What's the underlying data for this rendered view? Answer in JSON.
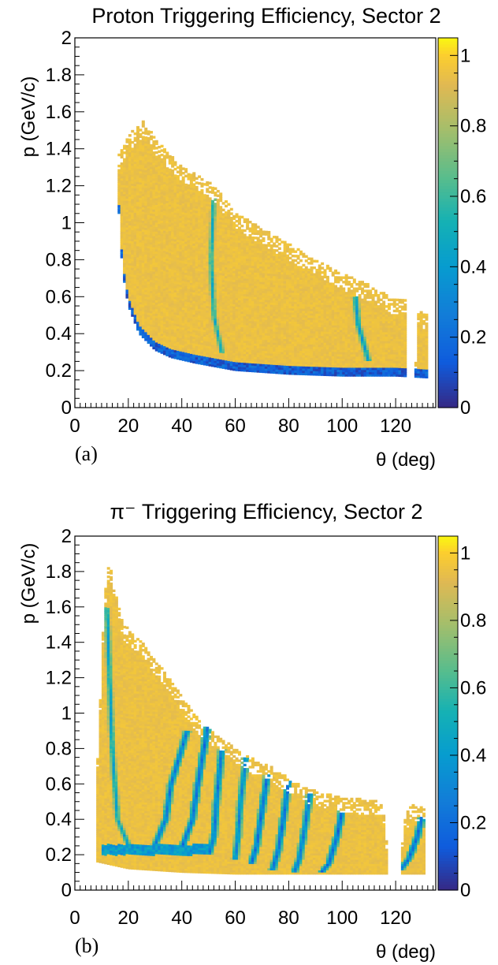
{
  "chart_data": [
    {
      "type": "heatmap",
      "title": "Proton Triggering Efficiency, Sector 2",
      "xlabel": "θ (deg)",
      "ylabel": "p (GeV/c)",
      "panel_label": "(a)",
      "xlim": [
        0,
        135
      ],
      "ylim": [
        0,
        2
      ],
      "zlim": [
        0,
        1.05
      ],
      "x_ticks": [
        0,
        20,
        40,
        60,
        80,
        100,
        120
      ],
      "y_ticks": [
        0,
        0.2,
        0.4,
        0.6,
        0.8,
        1,
        1.2,
        1.4,
        1.6,
        1.8,
        2
      ],
      "y_tick_labels": [
        "0",
        "0.2",
        "0.4",
        "0.6",
        "0.8",
        "1",
        "1.2",
        "1.4",
        "1.6",
        "1.8",
        "2"
      ],
      "colorbar_ticks": [
        0,
        0.2,
        0.4,
        0.6,
        0.8,
        1
      ],
      "colorbar_tick_labels": [
        "0",
        "0.2",
        "0.4",
        "0.6",
        "0.8",
        "1"
      ],
      "colormap": "viridis-like (dark blue → teal → yellow)",
      "bins": {
        "dtheta": 1,
        "dp": 0.012
      },
      "region": {
        "theta_range": [
          16,
          132
        ],
        "p_min_edge": [
          [
            16,
            1.2
          ],
          [
            17,
            0.9
          ],
          [
            18,
            0.72
          ],
          [
            20,
            0.55
          ],
          [
            24,
            0.4
          ],
          [
            30,
            0.31
          ],
          [
            36,
            0.27
          ],
          [
            45,
            0.24
          ],
          [
            60,
            0.2
          ],
          [
            80,
            0.18
          ],
          [
            100,
            0.17
          ],
          [
            120,
            0.17
          ],
          [
            132,
            0.16
          ]
        ],
        "p_max_edge": [
          [
            16,
            1.35
          ],
          [
            19,
            1.45
          ],
          [
            22,
            1.5
          ],
          [
            26,
            1.55
          ],
          [
            30,
            1.45
          ],
          [
            40,
            1.3
          ],
          [
            50,
            1.22
          ],
          [
            52,
            1.2
          ],
          [
            60,
            1.05
          ],
          [
            80,
            0.88
          ],
          [
            100,
            0.72
          ],
          [
            110,
            0.66
          ],
          [
            120,
            0.58
          ],
          [
            124,
            0.58
          ],
          [
            125,
            0.0
          ],
          [
            127,
            0.0
          ],
          [
            128,
            0.52
          ],
          [
            132,
            0.5
          ]
        ],
        "gaps": [
          [
            123.5,
            126.5
          ]
        ],
        "low_efficiency_bands": [
          {
            "name": "low-p edge",
            "description": "dark blue band along the lower boundary",
            "value": 0.05
          },
          {
            "name": "arc near 50 deg",
            "theta_at_p": [
              [
                52,
                1.15
              ],
              [
                51,
                0.8
              ],
              [
                52,
                0.5
              ],
              [
                55,
                0.3
              ]
            ],
            "value": 0.4
          },
          {
            "name": "arc near 108 deg",
            "theta_at_p": [
              [
                105,
                0.6
              ],
              [
                106,
                0.45
              ],
              [
                108,
                0.35
              ],
              [
                110,
                0.25
              ]
            ],
            "value": 0.3
          }
        ],
        "typical_efficiency": 0.97
      }
    },
    {
      "type": "heatmap",
      "title": "π⁻ Triggering Efficiency, Sector 2",
      "xlabel": "θ (deg)",
      "ylabel": "p (GeV/c)",
      "panel_label": "(b)",
      "xlim": [
        0,
        135
      ],
      "ylim": [
        0,
        2
      ],
      "zlim": [
        0,
        1.05
      ],
      "x_ticks": [
        0,
        20,
        40,
        60,
        80,
        100,
        120
      ],
      "y_ticks": [
        0,
        0.2,
        0.4,
        0.6,
        0.8,
        1,
        1.2,
        1.4,
        1.6,
        1.8,
        2
      ],
      "y_tick_labels": [
        "0",
        "0.2",
        "0.4",
        "0.6",
        "0.8",
        "1",
        "1.2",
        "1.4",
        "1.6",
        "1.8",
        "2"
      ],
      "colorbar_ticks": [
        0,
        0.2,
        0.4,
        0.6,
        0.8,
        1
      ],
      "colorbar_tick_labels": [
        "0",
        "0.2",
        "0.4",
        "0.6",
        "0.8",
        "1"
      ],
      "colormap": "viridis-like (dark blue → teal → yellow)",
      "bins": {
        "dtheta": 1,
        "dp": 0.012
      },
      "region": {
        "theta_range": [
          8,
          131
        ],
        "p_min_edge": [
          [
            8,
            0.16
          ],
          [
            20,
            0.12
          ],
          [
            40,
            0.1
          ],
          [
            60,
            0.09
          ],
          [
            100,
            0.09
          ],
          [
            131,
            0.09
          ]
        ],
        "p_max_edge": [
          [
            8,
            0.68
          ],
          [
            9,
            0.85
          ],
          [
            10,
            1.3
          ],
          [
            11,
            1.6
          ],
          [
            12,
            1.8
          ],
          [
            13,
            1.85
          ],
          [
            14,
            1.75
          ],
          [
            18,
            1.5
          ],
          [
            25,
            1.4
          ],
          [
            35,
            1.2
          ],
          [
            45,
            0.98
          ],
          [
            55,
            0.85
          ],
          [
            65,
            0.75
          ],
          [
            75,
            0.68
          ],
          [
            85,
            0.58
          ],
          [
            100,
            0.52
          ],
          [
            115,
            0.5
          ],
          [
            116,
            0.4
          ],
          [
            118,
            0.0
          ],
          [
            121,
            0.0
          ],
          [
            123,
            0.4
          ],
          [
            126,
            0.48
          ],
          [
            131,
            0.46
          ]
        ],
        "gaps": [
          [
            116.5,
            121.5
          ]
        ],
        "low_efficiency_bands": [
          {
            "name": "band 1",
            "theta_at_p": [
              [
                12,
                1.6
              ],
              [
                13,
                1.2
              ],
              [
                14,
                0.8
              ],
              [
                16,
                0.4
              ],
              [
                20,
                0.26
              ]
            ],
            "value": 0.35
          },
          {
            "name": "band 2",
            "theta_at_p": [
              [
                42,
                0.9
              ],
              [
                36,
                0.6
              ],
              [
                34,
                0.4
              ],
              [
                30,
                0.26
              ]
            ],
            "value": 0.15
          },
          {
            "name": "band 3",
            "theta_at_p": [
              [
                50,
                0.95
              ],
              [
                46,
                0.6
              ],
              [
                44,
                0.4
              ],
              [
                40,
                0.24
              ]
            ],
            "value": 0.12
          },
          {
            "name": "band 4",
            "theta_at_p": [
              [
                55,
                0.8
              ],
              [
                53,
                0.5
              ],
              [
                52,
                0.3
              ],
              [
                50,
                0.2
              ]
            ],
            "value": 0.15
          },
          {
            "name": "band 5",
            "theta_at_p": [
              [
                64,
                0.75
              ],
              [
                62,
                0.5
              ],
              [
                61,
                0.3
              ],
              [
                60,
                0.18
              ]
            ],
            "value": 0.2
          },
          {
            "name": "band 6",
            "theta_at_p": [
              [
                72,
                0.65
              ],
              [
                70,
                0.45
              ],
              [
                68,
                0.25
              ],
              [
                66,
                0.15
              ]
            ],
            "value": 0.12
          },
          {
            "name": "band 7",
            "theta_at_p": [
              [
                80,
                0.62
              ],
              [
                78,
                0.4
              ],
              [
                76,
                0.22
              ],
              [
                74,
                0.12
              ]
            ],
            "value": 0.12
          },
          {
            "name": "band 8",
            "theta_at_p": [
              [
                88,
                0.55
              ],
              [
                86,
                0.35
              ],
              [
                84,
                0.18
              ],
              [
                82,
                0.1
              ]
            ],
            "value": 0.15
          },
          {
            "name": "band 9",
            "theta_at_p": [
              [
                100,
                0.45
              ],
              [
                98,
                0.3
              ],
              [
                95,
                0.15
              ],
              [
                92,
                0.1
              ]
            ],
            "value": 0.1
          },
          {
            "name": "band 10",
            "theta_at_p": [
              [
                130,
                0.42
              ],
              [
                128,
                0.3
              ],
              [
                125,
                0.18
              ],
              [
                122,
                0.12
              ]
            ],
            "value": 0.1
          },
          {
            "name": "low-p edge",
            "description": "dark band just above 0.2 GeV/c from 10 to 50 deg",
            "value": 0.3
          }
        ],
        "typical_efficiency": 0.97
      }
    }
  ]
}
